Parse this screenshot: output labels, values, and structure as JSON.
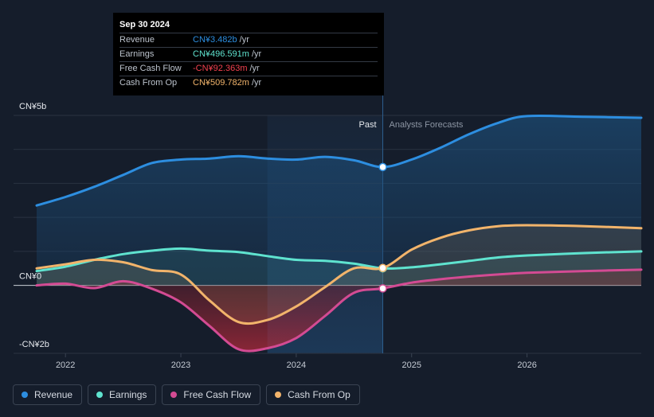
{
  "tooltip": {
    "date": "Sep 30 2024",
    "rows": [
      {
        "label": "Revenue",
        "value": "CN¥3.482b",
        "unit": "/yr",
        "color": "#2d8ee0"
      },
      {
        "label": "Earnings",
        "value": "CN¥496.591m",
        "unit": "/yr",
        "color": "#5fe3cf"
      },
      {
        "label": "Free Cash Flow",
        "value": "-CN¥92.363m",
        "unit": "/yr",
        "color": "#f2414f"
      },
      {
        "label": "Cash From Op",
        "value": "CN¥509.782m",
        "unit": "/yr",
        "color": "#f2b46b"
      }
    ]
  },
  "labels": {
    "past": "Past",
    "forecast": "Analysts Forecasts"
  },
  "chart_data": {
    "type": "area",
    "ylim": [
      -2,
      5
    ],
    "y_tick_labels": [
      {
        "value": 5,
        "label": "CN¥5b"
      },
      {
        "value": 0,
        "label": "CN¥0"
      },
      {
        "value": -2,
        "label": "-CN¥2b"
      }
    ],
    "x_tick_labels": [
      {
        "value": 2022,
        "label": "2022"
      },
      {
        "value": 2023,
        "label": "2023"
      },
      {
        "value": 2024,
        "label": "2024"
      },
      {
        "value": 2025,
        "label": "2025"
      },
      {
        "value": 2026,
        "label": "2026"
      }
    ],
    "xlim": [
      2021.55,
      2026.99
    ],
    "past_end": 2024.75,
    "highlight_start": 2023.75,
    "series": [
      {
        "name": "Revenue",
        "color": "#2d8ee0",
        "x": [
          2021.75,
          2022.0,
          2022.25,
          2022.5,
          2022.75,
          2023.0,
          2023.25,
          2023.5,
          2023.75,
          2024.0,
          2024.25,
          2024.5,
          2024.75,
          2025.0,
          2025.25,
          2025.5,
          2025.75,
          2026.0,
          2026.5,
          2026.99
        ],
        "y": [
          2.35,
          2.6,
          2.9,
          3.25,
          3.6,
          3.7,
          3.73,
          3.8,
          3.73,
          3.7,
          3.78,
          3.68,
          3.48,
          3.7,
          4.05,
          4.45,
          4.78,
          4.98,
          4.96,
          4.93
        ]
      },
      {
        "name": "Earnings",
        "color": "#5fe3cf",
        "x": [
          2021.75,
          2022.0,
          2022.25,
          2022.5,
          2022.75,
          2023.0,
          2023.25,
          2023.5,
          2023.75,
          2024.0,
          2024.25,
          2024.5,
          2024.75,
          2025.0,
          2025.25,
          2025.5,
          2025.75,
          2026.0,
          2026.5,
          2026.99
        ],
        "y": [
          0.42,
          0.55,
          0.75,
          0.92,
          1.02,
          1.08,
          1.02,
          0.98,
          0.86,
          0.75,
          0.72,
          0.64,
          0.5,
          0.53,
          0.62,
          0.72,
          0.82,
          0.88,
          0.95,
          1.0
        ]
      },
      {
        "name": "Free Cash Flow",
        "color": "#d34b93",
        "x": [
          2021.75,
          2022.0,
          2022.25,
          2022.5,
          2022.75,
          2023.0,
          2023.25,
          2023.5,
          2023.75,
          2024.0,
          2024.25,
          2024.5,
          2024.75,
          2025.0,
          2025.25,
          2025.5,
          2025.75,
          2026.0,
          2026.5,
          2026.99
        ],
        "y": [
          0.0,
          0.05,
          -0.08,
          0.12,
          -0.1,
          -0.5,
          -1.2,
          -1.88,
          -1.85,
          -1.55,
          -0.9,
          -0.22,
          -0.09,
          0.08,
          0.18,
          0.26,
          0.32,
          0.37,
          0.42,
          0.46
        ]
      },
      {
        "name": "Cash From Op",
        "color": "#f2b46b",
        "x": [
          2021.75,
          2022.0,
          2022.25,
          2022.5,
          2022.75,
          2023.0,
          2023.25,
          2023.5,
          2023.75,
          2024.0,
          2024.25,
          2024.5,
          2024.75,
          2025.0,
          2025.25,
          2025.5,
          2025.75,
          2026.0,
          2026.5,
          2026.99
        ],
        "y": [
          0.5,
          0.62,
          0.75,
          0.68,
          0.45,
          0.32,
          -0.45,
          -1.08,
          -1.02,
          -0.62,
          -0.05,
          0.5,
          0.51,
          1.05,
          1.4,
          1.62,
          1.74,
          1.77,
          1.74,
          1.68
        ]
      }
    ]
  },
  "legend": [
    {
      "label": "Revenue",
      "color": "#2d8ee0"
    },
    {
      "label": "Earnings",
      "color": "#5fe3cf"
    },
    {
      "label": "Free Cash Flow",
      "color": "#d34b93"
    },
    {
      "label": "Cash From Op",
      "color": "#f2b46b"
    }
  ]
}
